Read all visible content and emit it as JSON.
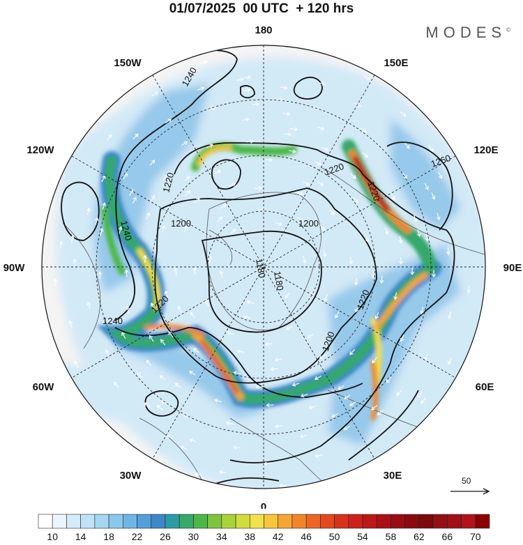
{
  "title": "01/07/2025  00 UTC  + 120 hrs",
  "brand": "MODES",
  "brand_mark": "©",
  "longitude_labels": [
    "180",
    "150E",
    "120E",
    "90E",
    "60E",
    "30E",
    "0",
    "30W",
    "60W",
    "90W",
    "120W",
    "150W"
  ],
  "contour_labels": [
    "1240",
    "1220",
    "1220",
    "1260",
    "1200",
    "1200",
    "1180",
    "1180",
    "1220",
    "1220",
    "1220",
    "1240",
    "1240",
    "1200"
  ],
  "vector_scale_label": "50",
  "colorbar": {
    "tick_labels": [
      "10",
      "14",
      "18",
      "22",
      "26",
      "30",
      "34",
      "38",
      "42",
      "46",
      "50",
      "54",
      "58",
      "62",
      "66",
      "70"
    ],
    "colors": [
      "#ffffff",
      "#eaf6fc",
      "#d4ecf9",
      "#bfe2f6",
      "#a6d6f2",
      "#8cc8ee",
      "#6fb6e5",
      "#539fd9",
      "#3d86c8",
      "#2a9ca5",
      "#36a86a",
      "#4cb848",
      "#7dc53e",
      "#a8d43a",
      "#d0dd3c",
      "#f2e14a",
      "#f7c63a",
      "#f6a532",
      "#f2852a",
      "#ec6524",
      "#e3481f",
      "#d8321b",
      "#cc2219",
      "#bd1716",
      "#ac1014",
      "#9b0c12",
      "#8b0a10",
      "#7d080e",
      "#930f14",
      "#a01016",
      "#b0141a",
      "#8b0000"
    ]
  }
}
